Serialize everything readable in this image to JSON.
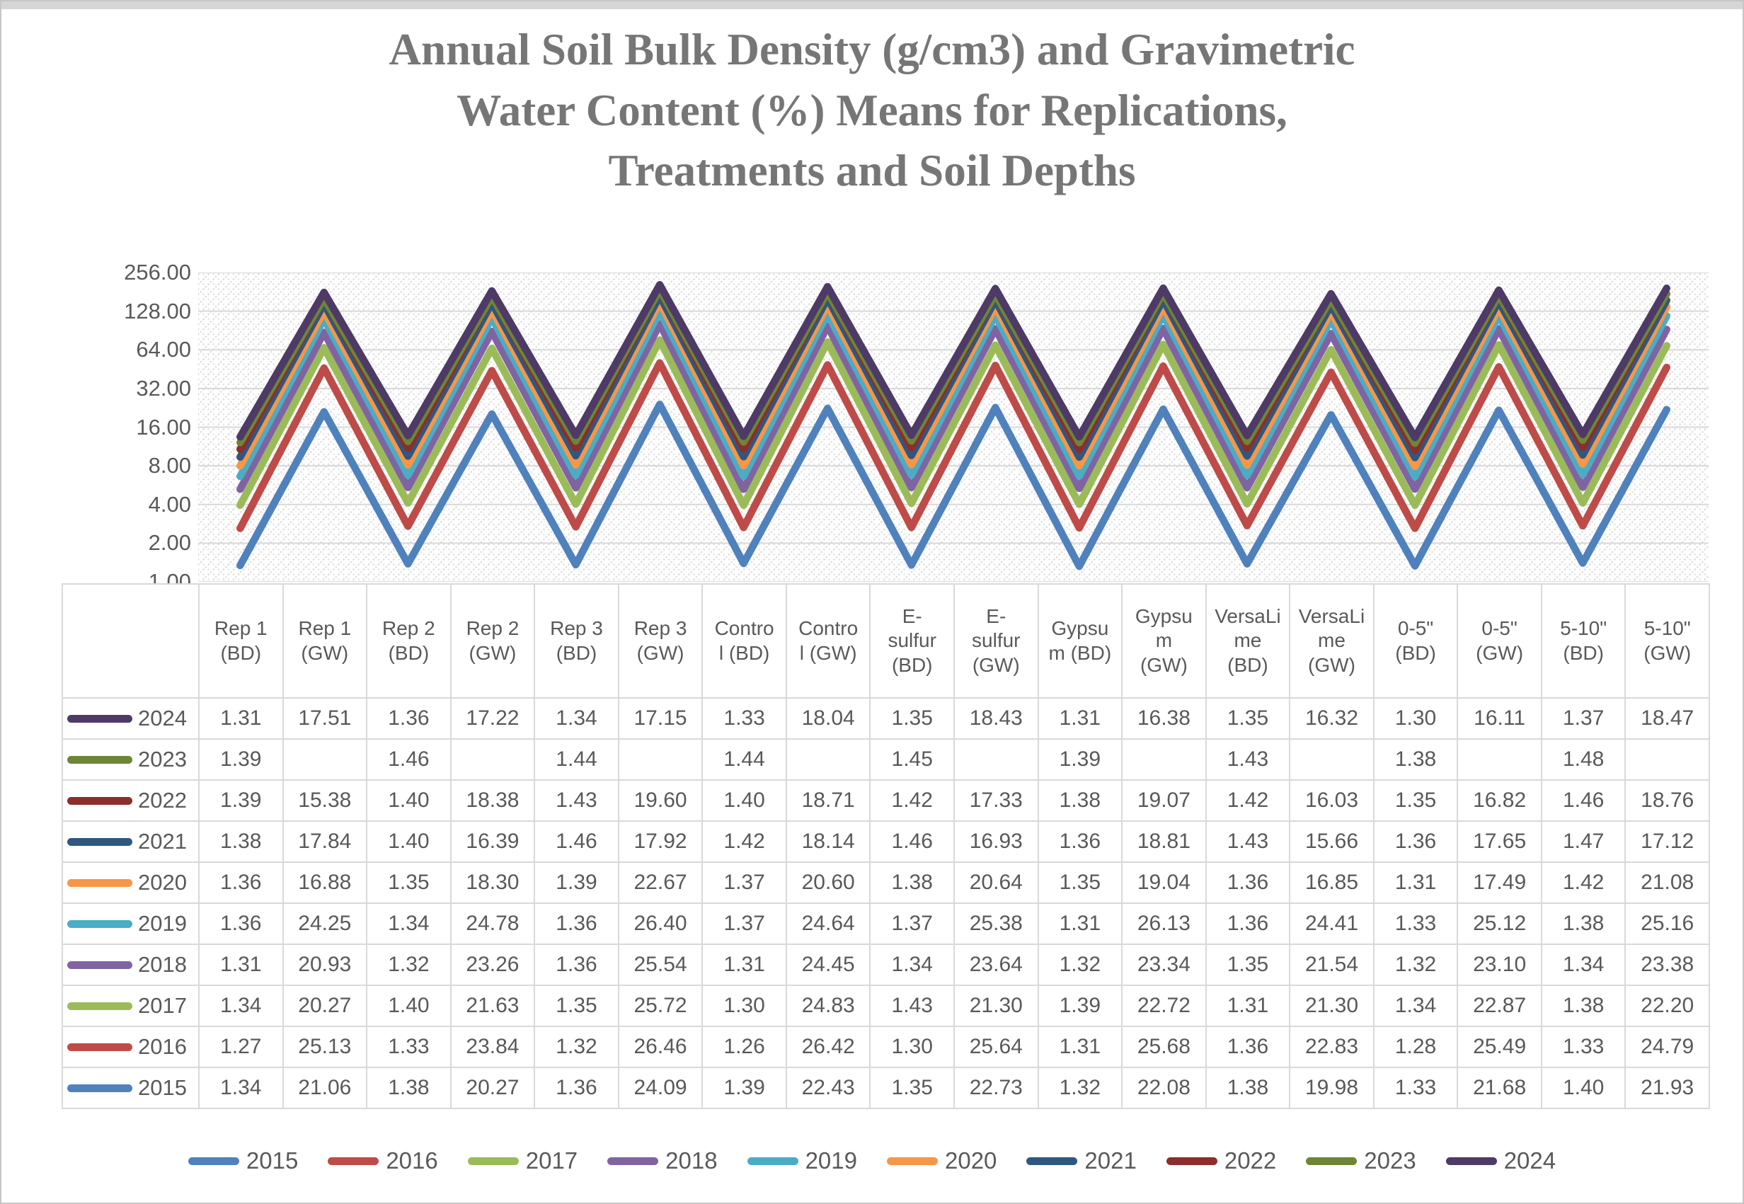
{
  "page": {
    "title_lines": [
      "Annual Soil Bulk Density (g/cm3) and Gravimetric",
      "Water Content (%) Means for Replications,",
      "Treatments and Soil Depths"
    ]
  },
  "chart_data": {
    "type": "line",
    "stacked": true,
    "y_scale": "log2",
    "ylim": [
      1,
      256
    ],
    "grid": true,
    "plot_background": "light-diagonal-hatch",
    "legend_position": "bottom",
    "gridline_color": "#d9d9d9",
    "y_axis_ticks": [
      "256.00",
      "128.00",
      "64.00",
      "32.00",
      "16.00",
      "8.00",
      "4.00",
      "2.00",
      "1.00"
    ],
    "categories": [
      "Rep 1 (BD)",
      "Rep 1 (GW)",
      "Rep 2 (BD)",
      "Rep 2 (GW)",
      "Rep 3 (BD)",
      "Rep 3 (GW)",
      "Control (BD)",
      "Control (GW)",
      "E-sulfur (BD)",
      "E-sulfur (GW)",
      "Gypsum (BD)",
      "Gypsum (GW)",
      "VersaLime (BD)",
      "VersaLime (GW)",
      "0-5\" (BD)",
      "0-5\" (GW)",
      "5-10\" (BD)",
      "5-10\" (GW)"
    ],
    "series": [
      {
        "name": "2015",
        "color": "#4F81BD",
        "values": [
          "1.34",
          "21.06",
          "1.38",
          "20.27",
          "1.36",
          "24.09",
          "1.39",
          "22.43",
          "1.35",
          "22.73",
          "1.32",
          "22.08",
          "1.38",
          "19.98",
          "1.33",
          "21.68",
          "1.40",
          "21.93"
        ]
      },
      {
        "name": "2016",
        "color": "#BE4B48",
        "values": [
          "1.27",
          "25.13",
          "1.33",
          "23.84",
          "1.32",
          "26.46",
          "1.26",
          "26.42",
          "1.30",
          "25.64",
          "1.31",
          "25.68",
          "1.36",
          "22.83",
          "1.28",
          "25.49",
          "1.33",
          "24.79"
        ]
      },
      {
        "name": "2017",
        "color": "#9BBB59",
        "values": [
          "1.34",
          "20.27",
          "1.40",
          "21.63",
          "1.35",
          "25.72",
          "1.30",
          "24.83",
          "1.43",
          "21.30",
          "1.39",
          "22.72",
          "1.31",
          "21.30",
          "1.34",
          "22.87",
          "1.38",
          "22.20"
        ]
      },
      {
        "name": "2018",
        "color": "#8064A2",
        "values": [
          "1.31",
          "20.93",
          "1.32",
          "23.26",
          "1.36",
          "25.54",
          "1.31",
          "24.45",
          "1.34",
          "23.64",
          "1.32",
          "23.34",
          "1.35",
          "21.54",
          "1.32",
          "23.10",
          "1.34",
          "23.38"
        ]
      },
      {
        "name": "2019",
        "color": "#4BACC6",
        "values": [
          "1.36",
          "24.25",
          "1.34",
          "24.78",
          "1.36",
          "26.40",
          "1.37",
          "24.64",
          "1.37",
          "25.38",
          "1.31",
          "26.13",
          "1.36",
          "24.41",
          "1.33",
          "25.12",
          "1.38",
          "25.16"
        ]
      },
      {
        "name": "2020",
        "color": "#F79646",
        "values": [
          "1.36",
          "16.88",
          "1.35",
          "18.30",
          "1.39",
          "22.67",
          "1.37",
          "20.60",
          "1.38",
          "20.64",
          "1.35",
          "19.04",
          "1.36",
          "16.85",
          "1.31",
          "17.49",
          "1.42",
          "21.08"
        ]
      },
      {
        "name": "2021",
        "color": "#2F5780",
        "values": [
          "1.38",
          "17.84",
          "1.40",
          "16.39",
          "1.46",
          "17.92",
          "1.42",
          "18.14",
          "1.46",
          "16.93",
          "1.36",
          "18.81",
          "1.43",
          "15.66",
          "1.36",
          "17.65",
          "1.47",
          "17.12"
        ]
      },
      {
        "name": "2022",
        "color": "#8B2E2C",
        "values": [
          "1.39",
          "15.38",
          "1.40",
          "18.38",
          "1.43",
          "19.60",
          "1.40",
          "18.71",
          "1.42",
          "17.33",
          "1.38",
          "19.07",
          "1.42",
          "16.03",
          "1.35",
          "16.82",
          "1.46",
          "18.76"
        ]
      },
      {
        "name": "2023",
        "color": "#6D8636",
        "values": [
          "1.39",
          "",
          "1.46",
          "",
          "1.44",
          "",
          "1.44",
          "",
          "1.45",
          "",
          "1.39",
          "",
          "1.43",
          "",
          "1.38",
          "",
          "1.48",
          ""
        ]
      },
      {
        "name": "2024",
        "color": "#4E3A66",
        "values": [
          "1.31",
          "17.51",
          "1.36",
          "17.22",
          "1.34",
          "17.15",
          "1.33",
          "18.04",
          "1.35",
          "18.43",
          "1.31",
          "16.38",
          "1.35",
          "16.32",
          "1.30",
          "16.11",
          "1.37",
          "18.47"
        ]
      }
    ]
  },
  "table": {
    "column_headers": [
      "Rep 1\n(BD)",
      "Rep 1\n(GW)",
      "Rep 2\n(BD)",
      "Rep 2\n(GW)",
      "Rep 3\n(BD)",
      "Rep 3\n(GW)",
      "Contro\nl (BD)",
      "Contro\nl (GW)",
      "E-\nsulfur\n(BD)",
      "E-\nsulfur\n(GW)",
      "Gypsu\nm (BD)",
      "Gypsu\nm\n(GW)",
      "VersaLi\nme\n(BD)",
      "VersaLi\nme\n(GW)",
      "0-5\"\n(BD)",
      "0-5\"\n(GW)",
      "5-10\"\n(BD)",
      "5-10\"\n(GW)"
    ],
    "row_order_top_to_bottom": [
      "2024",
      "2023",
      "2022",
      "2021",
      "2020",
      "2019",
      "2018",
      "2017",
      "2016",
      "2015"
    ]
  }
}
